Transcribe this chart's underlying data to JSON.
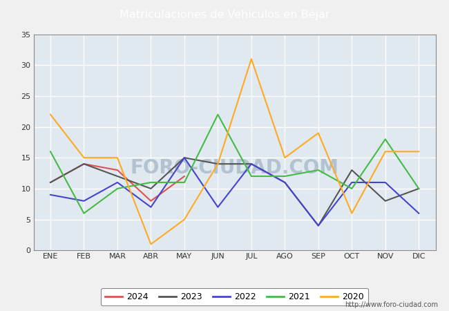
{
  "title": "Matriculaciones de Vehiculos en Béjar",
  "title_color": "white",
  "title_bg_color": "#5b9bd5",
  "months": [
    "ENE",
    "FEB",
    "MAR",
    "ABR",
    "MAY",
    "JUN",
    "JUL",
    "AGO",
    "SEP",
    "OCT",
    "NOV",
    "DIC"
  ],
  "series": {
    "2024": {
      "color": "#e05050",
      "data": [
        11,
        14,
        13,
        8,
        12,
        null,
        null,
        null,
        null,
        null,
        null,
        null
      ]
    },
    "2023": {
      "color": "#555555",
      "data": [
        11,
        14,
        12,
        10,
        15,
        14,
        14,
        11,
        4,
        13,
        8,
        10
      ]
    },
    "2022": {
      "color": "#4444cc",
      "data": [
        9,
        8,
        11,
        7,
        15,
        7,
        14,
        11,
        4,
        11,
        11,
        6
      ]
    },
    "2021": {
      "color": "#44bb44",
      "data": [
        16,
        6,
        10,
        11,
        11,
        22,
        12,
        12,
        13,
        10,
        18,
        10
      ]
    },
    "2020": {
      "color": "#ffaa22",
      "data": [
        22,
        15,
        15,
        1,
        5,
        14,
        31,
        15,
        19,
        6,
        16,
        16
      ]
    }
  },
  "ylim": [
    0,
    35
  ],
  "yticks": [
    0,
    5,
    10,
    15,
    20,
    25,
    30,
    35
  ],
  "url": "http://www.foro-ciudad.com",
  "bg_plot": "#e0e8f0",
  "grid_color": "white",
  "watermark": "FORO-CIUDAD.COM",
  "watermark_color": "#aabccc"
}
